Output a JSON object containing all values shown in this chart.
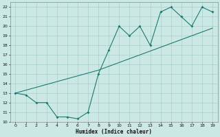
{
  "xlabel": "Humidex (Indice chaleur)",
  "x": [
    0,
    1,
    2,
    3,
    4,
    5,
    6,
    7,
    8,
    9,
    10,
    11,
    12,
    13,
    14,
    15,
    16,
    17,
    18,
    19
  ],
  "y_curve": [
    13,
    12.8,
    12,
    12,
    10.5,
    10.5,
    10.3,
    11,
    15,
    17.5,
    20,
    19,
    20,
    18,
    21.5,
    22,
    21,
    20,
    22,
    21.5
  ],
  "y_trend": [
    13,
    13.3,
    13.6,
    13.9,
    14.2,
    14.5,
    14.8,
    15.1,
    15.4,
    15.8,
    16.2,
    16.6,
    17.0,
    17.4,
    17.8,
    18.2,
    18.6,
    19.0,
    19.4,
    19.8
  ],
  "xlim": [
    -0.5,
    19.5
  ],
  "ylim": [
    10,
    22.5
  ],
  "yticks": [
    10,
    11,
    12,
    13,
    14,
    15,
    16,
    17,
    18,
    19,
    20,
    21,
    22
  ],
  "xticks": [
    0,
    1,
    2,
    3,
    4,
    5,
    6,
    7,
    8,
    9,
    10,
    11,
    12,
    13,
    14,
    15,
    16,
    17,
    18,
    19
  ],
  "line_color": "#1a7a6e",
  "bg_color": "#cce8e4",
  "grid_color": "#aacfcc"
}
